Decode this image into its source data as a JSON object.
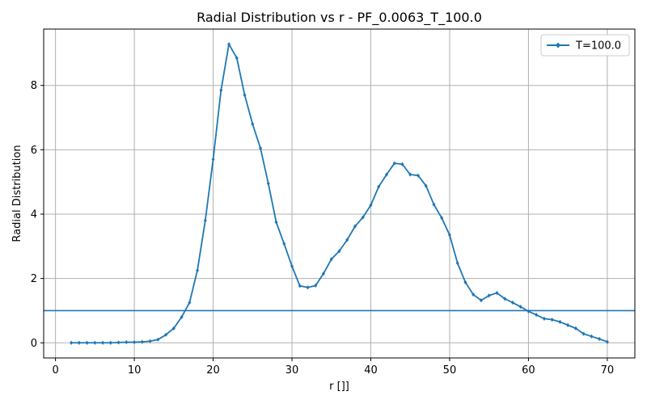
{
  "chart_data": {
    "type": "line",
    "title": "Radial Distribution vs r - PF_0.0063_T_100.0",
    "xlabel": "r []]",
    "ylabel": "Radial Distribution",
    "xlim": [
      -1.5,
      73.5
    ],
    "ylim": [
      -0.47,
      9.75
    ],
    "xticks": [
      0,
      10,
      20,
      30,
      40,
      50,
      60,
      70
    ],
    "yticks": [
      0,
      2,
      4,
      6,
      8
    ],
    "grid": true,
    "legend_position": "top-right",
    "hline": {
      "y": 1.0,
      "color": "#1f77b4"
    },
    "series": [
      {
        "name": "T=100.0",
        "color": "#1f77b4",
        "marker": "diamond",
        "x": [
          2,
          3,
          4,
          5,
          6,
          7,
          8,
          9,
          10,
          11,
          12,
          13,
          14,
          15,
          16,
          17,
          18,
          19,
          20,
          21,
          22,
          23,
          24,
          25,
          26,
          27,
          28,
          29,
          30,
          31,
          32,
          33,
          34,
          35,
          36,
          37,
          38,
          39,
          40,
          41,
          42,
          43,
          44,
          45,
          46,
          47,
          48,
          49,
          50,
          51,
          52,
          53,
          54,
          55,
          56,
          57,
          58,
          59,
          60,
          61,
          62,
          63,
          64,
          65,
          66,
          67,
          68,
          69,
          70
        ],
        "y": [
          0.0,
          0.0,
          0.0,
          0.0,
          0.0,
          0.0,
          0.01,
          0.02,
          0.02,
          0.03,
          0.05,
          0.1,
          0.25,
          0.45,
          0.8,
          1.25,
          2.25,
          3.8,
          5.7,
          7.85,
          9.28,
          8.85,
          7.7,
          6.8,
          6.05,
          4.95,
          3.75,
          3.08,
          2.38,
          1.77,
          1.72,
          1.78,
          2.15,
          2.6,
          2.85,
          3.2,
          3.62,
          3.9,
          4.28,
          4.85,
          5.23,
          5.58,
          5.55,
          5.23,
          5.2,
          4.88,
          4.3,
          3.88,
          3.35,
          2.48,
          1.88,
          1.5,
          1.32,
          1.47,
          1.55,
          1.37,
          1.25,
          1.12,
          0.98,
          0.87,
          0.75,
          0.72,
          0.65,
          0.55,
          0.45,
          0.28,
          0.2,
          0.12,
          0.03
        ]
      }
    ]
  }
}
